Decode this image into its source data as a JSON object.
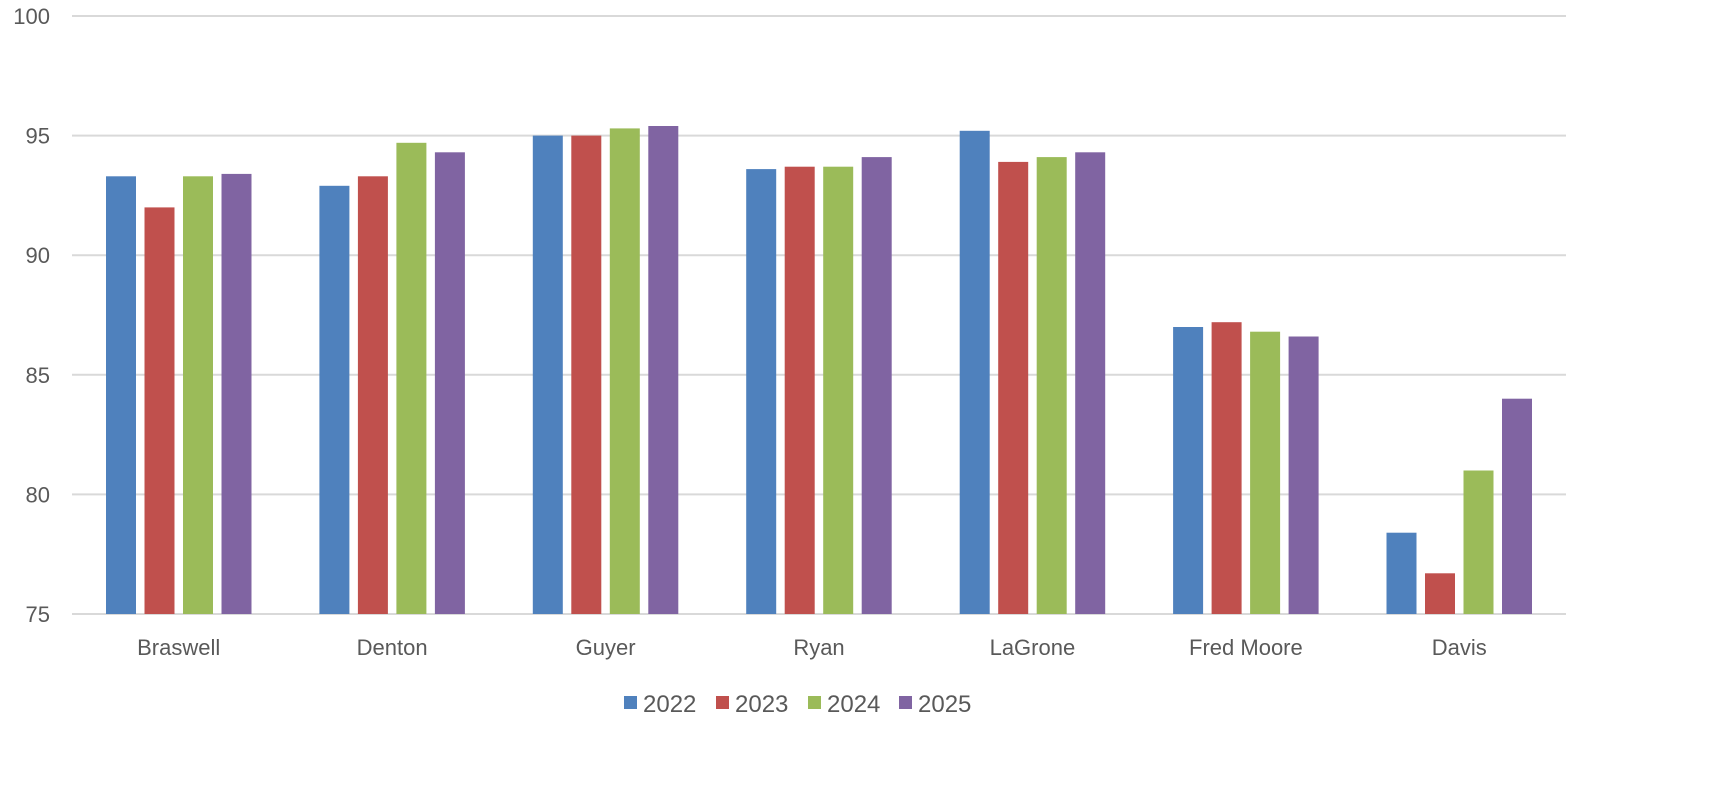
{
  "chart_data": {
    "type": "bar",
    "title": "",
    "xlabel": "",
    "ylabel": "",
    "ylim": [
      75,
      100
    ],
    "yticks": [
      75,
      80,
      85,
      90,
      95,
      100
    ],
    "grid": true,
    "legend_position": "bottom",
    "categories": [
      "Braswell",
      "Denton",
      "Guyer",
      "Ryan",
      "LaGrone",
      "Fred Moore",
      "Davis"
    ],
    "series": [
      {
        "name": "2022",
        "color": "#4F81BD",
        "values": [
          93.3,
          92.9,
          95.0,
          93.6,
          95.2,
          87.0,
          78.4
        ]
      },
      {
        "name": "2023",
        "color": "#C0504D",
        "values": [
          92.0,
          93.3,
          95.0,
          93.7,
          93.9,
          87.2,
          76.7
        ]
      },
      {
        "name": "2024",
        "color": "#9BBB59",
        "values": [
          93.3,
          94.7,
          95.3,
          93.7,
          94.1,
          86.8,
          81.0
        ]
      },
      {
        "name": "2025",
        "color": "#8064A2",
        "values": [
          93.4,
          94.3,
          95.4,
          94.1,
          94.3,
          86.6,
          84.0
        ]
      }
    ]
  }
}
